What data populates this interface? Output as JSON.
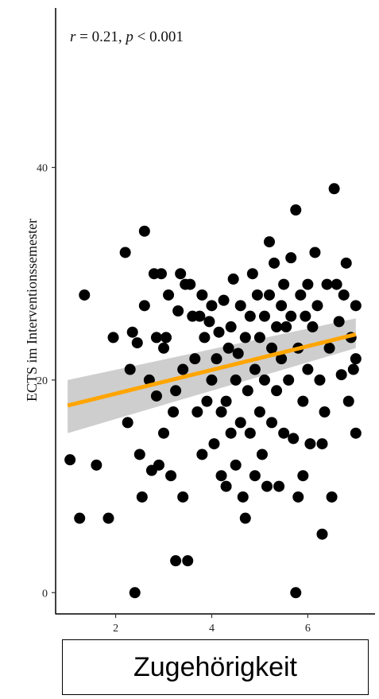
{
  "chart_data": {
    "type": "scatter",
    "annotation": {
      "r_symbol": "r",
      "r_text": " = 0.21, ",
      "p_symbol": "p",
      "p_text": " < 0.001"
    },
    "xlabel": "Zugehörigkeit",
    "ylabel": "ECTS im Interventionssemester",
    "xlim": [
      0.75,
      7.4
    ],
    "ylim": [
      -2,
      55
    ],
    "xticks": [
      2,
      4,
      6
    ],
    "xtick_labels": [
      "2",
      "4",
      "6"
    ],
    "yticks": [
      0,
      20,
      40
    ],
    "ytick_labels": [
      "0",
      "20",
      "40"
    ],
    "grid": false,
    "colors": {
      "points": "#000000",
      "fit_line": "#FFA500",
      "ci_band": "#BEBEBE"
    },
    "fit": {
      "x": [
        1,
        7
      ],
      "y": [
        17.6,
        24.3
      ],
      "ci_lower": [
        15.0,
        23.0
      ],
      "ci_upper": [
        20.0,
        25.8
      ]
    },
    "points": [
      [
        1.05,
        12.5
      ],
      [
        1.25,
        7
      ],
      [
        1.35,
        28
      ],
      [
        1.6,
        12
      ],
      [
        1.85,
        7
      ],
      [
        1.95,
        24
      ],
      [
        2.2,
        32
      ],
      [
        2.25,
        16
      ],
      [
        2.3,
        21
      ],
      [
        2.35,
        24.5
      ],
      [
        2.4,
        0
      ],
      [
        2.45,
        23.5
      ],
      [
        2.5,
        13
      ],
      [
        2.55,
        9
      ],
      [
        2.6,
        34
      ],
      [
        2.6,
        27
      ],
      [
        2.7,
        20
      ],
      [
        2.75,
        11.5
      ],
      [
        2.8,
        30
      ],
      [
        2.85,
        24
      ],
      [
        2.85,
        18.5
      ],
      [
        2.9,
        12
      ],
      [
        2.95,
        30
      ],
      [
        3.0,
        23
      ],
      [
        3.0,
        15
      ],
      [
        3.05,
        24
      ],
      [
        3.1,
        28
      ],
      [
        3.15,
        11
      ],
      [
        3.2,
        17
      ],
      [
        3.25,
        19
      ],
      [
        3.25,
        3
      ],
      [
        3.3,
        26.5
      ],
      [
        3.35,
        30
      ],
      [
        3.4,
        21
      ],
      [
        3.4,
        9
      ],
      [
        3.45,
        29
      ],
      [
        3.5,
        3
      ],
      [
        3.55,
        29
      ],
      [
        3.6,
        26
      ],
      [
        3.65,
        22
      ],
      [
        3.7,
        17
      ],
      [
        3.75,
        26
      ],
      [
        3.8,
        13
      ],
      [
        3.8,
        28
      ],
      [
        3.85,
        24
      ],
      [
        3.9,
        18
      ],
      [
        3.95,
        25.5
      ],
      [
        4.0,
        27
      ],
      [
        4.0,
        20
      ],
      [
        4.05,
        14
      ],
      [
        4.1,
        22
      ],
      [
        4.15,
        24.5
      ],
      [
        4.2,
        17
      ],
      [
        4.2,
        11
      ],
      [
        4.25,
        27.5
      ],
      [
        4.3,
        10
      ],
      [
        4.3,
        18
      ],
      [
        4.35,
        23
      ],
      [
        4.4,
        15
      ],
      [
        4.4,
        25
      ],
      [
        4.45,
        29.5
      ],
      [
        4.5,
        20
      ],
      [
        4.5,
        12
      ],
      [
        4.55,
        22.5
      ],
      [
        4.6,
        27
      ],
      [
        4.6,
        16
      ],
      [
        4.65,
        9
      ],
      [
        4.7,
        7
      ],
      [
        4.7,
        24
      ],
      [
        4.75,
        19
      ],
      [
        4.8,
        26
      ],
      [
        4.8,
        15
      ],
      [
        4.85,
        30
      ],
      [
        4.9,
        21
      ],
      [
        4.9,
        11
      ],
      [
        4.95,
        28
      ],
      [
        5.0,
        24
      ],
      [
        5.0,
        17
      ],
      [
        5.05,
        13
      ],
      [
        5.1,
        26
      ],
      [
        5.1,
        20
      ],
      [
        5.15,
        10
      ],
      [
        5.2,
        33
      ],
      [
        5.2,
        28
      ],
      [
        5.25,
        23
      ],
      [
        5.25,
        16
      ],
      [
        5.3,
        31
      ],
      [
        5.35,
        25
      ],
      [
        5.35,
        19
      ],
      [
        5.4,
        10
      ],
      [
        5.45,
        27
      ],
      [
        5.45,
        22
      ],
      [
        5.5,
        29
      ],
      [
        5.5,
        15
      ],
      [
        5.55,
        25
      ],
      [
        5.6,
        20
      ],
      [
        5.65,
        31.5
      ],
      [
        5.65,
        26
      ],
      [
        5.7,
        14.5
      ],
      [
        5.75,
        36
      ],
      [
        5.75,
        0
      ],
      [
        5.8,
        9
      ],
      [
        5.8,
        23
      ],
      [
        5.85,
        28
      ],
      [
        5.9,
        18
      ],
      [
        5.9,
        11
      ],
      [
        5.95,
        26
      ],
      [
        6.0,
        29
      ],
      [
        6.0,
        21
      ],
      [
        6.05,
        14
      ],
      [
        6.1,
        25
      ],
      [
        6.15,
        32
      ],
      [
        6.2,
        27
      ],
      [
        6.25,
        20
      ],
      [
        6.3,
        5.5
      ],
      [
        6.3,
        14
      ],
      [
        6.35,
        17
      ],
      [
        6.4,
        29
      ],
      [
        6.45,
        23
      ],
      [
        6.5,
        9
      ],
      [
        6.55,
        38
      ],
      [
        6.6,
        29
      ],
      [
        6.65,
        25.5
      ],
      [
        6.7,
        20.5
      ],
      [
        6.75,
        28
      ],
      [
        6.8,
        31
      ],
      [
        6.85,
        18
      ],
      [
        6.9,
        24
      ],
      [
        7.0,
        27
      ],
      [
        7.0,
        22
      ],
      [
        7.0,
        15
      ],
      [
        6.95,
        21
      ]
    ]
  }
}
